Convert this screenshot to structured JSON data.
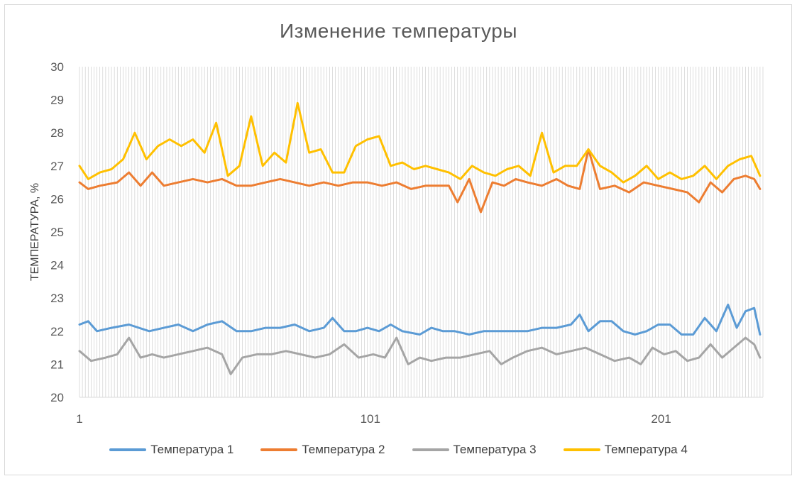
{
  "chart_data": {
    "type": "line",
    "title": "Изменение температуры",
    "xlabel": "",
    "ylabel": "ТЕМПЕРАТУРА, %",
    "ylim": [
      20,
      30
    ],
    "xlim": [
      1,
      236
    ],
    "y_ticks": [
      "20",
      "21",
      "22",
      "23",
      "24",
      "25",
      "26",
      "27",
      "28",
      "29",
      "30"
    ],
    "x_ticks": [
      {
        "value": 1,
        "label": "1"
      },
      {
        "value": 101,
        "label": "101"
      },
      {
        "value": 201,
        "label": "201"
      }
    ],
    "grid": true,
    "legend_position": "bottom",
    "series": [
      {
        "name": "Температура 1",
        "color": "#5b9bd5",
        "points": [
          [
            1,
            22.2
          ],
          [
            4,
            22.3
          ],
          [
            7,
            22.0
          ],
          [
            12,
            22.1
          ],
          [
            18,
            22.2
          ],
          [
            25,
            22.0
          ],
          [
            30,
            22.1
          ],
          [
            35,
            22.2
          ],
          [
            40,
            22.0
          ],
          [
            45,
            22.2
          ],
          [
            50,
            22.3
          ],
          [
            55,
            22.0
          ],
          [
            60,
            22.0
          ],
          [
            65,
            22.1
          ],
          [
            70,
            22.1
          ],
          [
            75,
            22.2
          ],
          [
            80,
            22.0
          ],
          [
            85,
            22.1
          ],
          [
            88,
            22.4
          ],
          [
            92,
            22.0
          ],
          [
            96,
            22.0
          ],
          [
            100,
            22.1
          ],
          [
            104,
            22.0
          ],
          [
            108,
            22.2
          ],
          [
            112,
            22.0
          ],
          [
            118,
            21.9
          ],
          [
            122,
            22.1
          ],
          [
            126,
            22.0
          ],
          [
            130,
            22.0
          ],
          [
            135,
            21.9
          ],
          [
            140,
            22.0
          ],
          [
            145,
            22.0
          ],
          [
            150,
            22.0
          ],
          [
            155,
            22.0
          ],
          [
            160,
            22.1
          ],
          [
            165,
            22.1
          ],
          [
            170,
            22.2
          ],
          [
            173,
            22.5
          ],
          [
            176,
            22.0
          ],
          [
            180,
            22.3
          ],
          [
            184,
            22.3
          ],
          [
            188,
            22.0
          ],
          [
            192,
            21.9
          ],
          [
            196,
            22.0
          ],
          [
            200,
            22.2
          ],
          [
            204,
            22.2
          ],
          [
            208,
            21.9
          ],
          [
            212,
            21.9
          ],
          [
            216,
            22.4
          ],
          [
            220,
            22.0
          ],
          [
            224,
            22.8
          ],
          [
            227,
            22.1
          ],
          [
            230,
            22.6
          ],
          [
            233,
            22.7
          ],
          [
            235,
            21.9
          ]
        ]
      },
      {
        "name": "Температура 2",
        "color": "#ed7d31",
        "points": [
          [
            1,
            26.5
          ],
          [
            4,
            26.3
          ],
          [
            8,
            26.4
          ],
          [
            14,
            26.5
          ],
          [
            18,
            26.8
          ],
          [
            22,
            26.4
          ],
          [
            26,
            26.8
          ],
          [
            30,
            26.4
          ],
          [
            35,
            26.5
          ],
          [
            40,
            26.6
          ],
          [
            45,
            26.5
          ],
          [
            50,
            26.6
          ],
          [
            55,
            26.4
          ],
          [
            60,
            26.4
          ],
          [
            65,
            26.5
          ],
          [
            70,
            26.6
          ],
          [
            75,
            26.5
          ],
          [
            80,
            26.4
          ],
          [
            85,
            26.5
          ],
          [
            90,
            26.4
          ],
          [
            95,
            26.5
          ],
          [
            100,
            26.5
          ],
          [
            105,
            26.4
          ],
          [
            110,
            26.5
          ],
          [
            115,
            26.3
          ],
          [
            120,
            26.4
          ],
          [
            124,
            26.4
          ],
          [
            128,
            26.4
          ],
          [
            131,
            25.9
          ],
          [
            135,
            26.6
          ],
          [
            139,
            25.6
          ],
          [
            143,
            26.5
          ],
          [
            147,
            26.4
          ],
          [
            151,
            26.6
          ],
          [
            155,
            26.5
          ],
          [
            160,
            26.4
          ],
          [
            165,
            26.6
          ],
          [
            169,
            26.4
          ],
          [
            173,
            26.3
          ],
          [
            176,
            27.5
          ],
          [
            180,
            26.3
          ],
          [
            185,
            26.4
          ],
          [
            190,
            26.2
          ],
          [
            195,
            26.5
          ],
          [
            200,
            26.4
          ],
          [
            205,
            26.3
          ],
          [
            210,
            26.2
          ],
          [
            214,
            25.9
          ],
          [
            218,
            26.5
          ],
          [
            222,
            26.2
          ],
          [
            226,
            26.6
          ],
          [
            230,
            26.7
          ],
          [
            233,
            26.6
          ],
          [
            235,
            26.3
          ]
        ]
      },
      {
        "name": "Температура 3",
        "color": "#a5a5a5",
        "points": [
          [
            1,
            21.4
          ],
          [
            5,
            21.1
          ],
          [
            10,
            21.2
          ],
          [
            14,
            21.3
          ],
          [
            18,
            21.8
          ],
          [
            22,
            21.2
          ],
          [
            26,
            21.3
          ],
          [
            30,
            21.2
          ],
          [
            35,
            21.3
          ],
          [
            40,
            21.4
          ],
          [
            45,
            21.5
          ],
          [
            50,
            21.3
          ],
          [
            53,
            20.7
          ],
          [
            57,
            21.2
          ],
          [
            62,
            21.3
          ],
          [
            67,
            21.3
          ],
          [
            72,
            21.4
          ],
          [
            77,
            21.3
          ],
          [
            82,
            21.2
          ],
          [
            87,
            21.3
          ],
          [
            92,
            21.6
          ],
          [
            97,
            21.2
          ],
          [
            102,
            21.3
          ],
          [
            106,
            21.2
          ],
          [
            110,
            21.8
          ],
          [
            114,
            21.0
          ],
          [
            118,
            21.2
          ],
          [
            122,
            21.1
          ],
          [
            127,
            21.2
          ],
          [
            132,
            21.2
          ],
          [
            137,
            21.3
          ],
          [
            142,
            21.4
          ],
          [
            146,
            21.0
          ],
          [
            150,
            21.2
          ],
          [
            155,
            21.4
          ],
          [
            160,
            21.5
          ],
          [
            165,
            21.3
          ],
          [
            170,
            21.4
          ],
          [
            175,
            21.5
          ],
          [
            180,
            21.3
          ],
          [
            185,
            21.1
          ],
          [
            190,
            21.2
          ],
          [
            194,
            21.0
          ],
          [
            198,
            21.5
          ],
          [
            202,
            21.3
          ],
          [
            206,
            21.4
          ],
          [
            210,
            21.1
          ],
          [
            214,
            21.2
          ],
          [
            218,
            21.6
          ],
          [
            222,
            21.2
          ],
          [
            226,
            21.5
          ],
          [
            230,
            21.8
          ],
          [
            233,
            21.6
          ],
          [
            235,
            21.2
          ]
        ]
      },
      {
        "name": "Температура 4",
        "color": "#ffc000",
        "points": [
          [
            1,
            27.0
          ],
          [
            4,
            26.6
          ],
          [
            8,
            26.8
          ],
          [
            12,
            26.9
          ],
          [
            16,
            27.2
          ],
          [
            20,
            28.0
          ],
          [
            24,
            27.2
          ],
          [
            28,
            27.6
          ],
          [
            32,
            27.8
          ],
          [
            36,
            27.6
          ],
          [
            40,
            27.8
          ],
          [
            44,
            27.4
          ],
          [
            48,
            28.3
          ],
          [
            52,
            26.7
          ],
          [
            56,
            27.0
          ],
          [
            60,
            28.5
          ],
          [
            64,
            27.0
          ],
          [
            68,
            27.4
          ],
          [
            72,
            27.1
          ],
          [
            76,
            28.9
          ],
          [
            80,
            27.4
          ],
          [
            84,
            27.5
          ],
          [
            88,
            26.8
          ],
          [
            92,
            26.8
          ],
          [
            96,
            27.6
          ],
          [
            100,
            27.8
          ],
          [
            104,
            27.9
          ],
          [
            108,
            27.0
          ],
          [
            112,
            27.1
          ],
          [
            116,
            26.9
          ],
          [
            120,
            27.0
          ],
          [
            124,
            26.9
          ],
          [
            128,
            26.8
          ],
          [
            132,
            26.6
          ],
          [
            136,
            27.0
          ],
          [
            140,
            26.8
          ],
          [
            144,
            26.7
          ],
          [
            148,
            26.9
          ],
          [
            152,
            27.0
          ],
          [
            156,
            26.7
          ],
          [
            160,
            28.0
          ],
          [
            164,
            26.8
          ],
          [
            168,
            27.0
          ],
          [
            172,
            27.0
          ],
          [
            176,
            27.5
          ],
          [
            180,
            27.0
          ],
          [
            184,
            26.8
          ],
          [
            188,
            26.5
          ],
          [
            192,
            26.7
          ],
          [
            196,
            27.0
          ],
          [
            200,
            26.6
          ],
          [
            204,
            26.8
          ],
          [
            208,
            26.6
          ],
          [
            212,
            26.7
          ],
          [
            216,
            27.0
          ],
          [
            220,
            26.6
          ],
          [
            224,
            27.0
          ],
          [
            228,
            27.2
          ],
          [
            232,
            27.3
          ],
          [
            235,
            26.7
          ]
        ]
      }
    ]
  }
}
